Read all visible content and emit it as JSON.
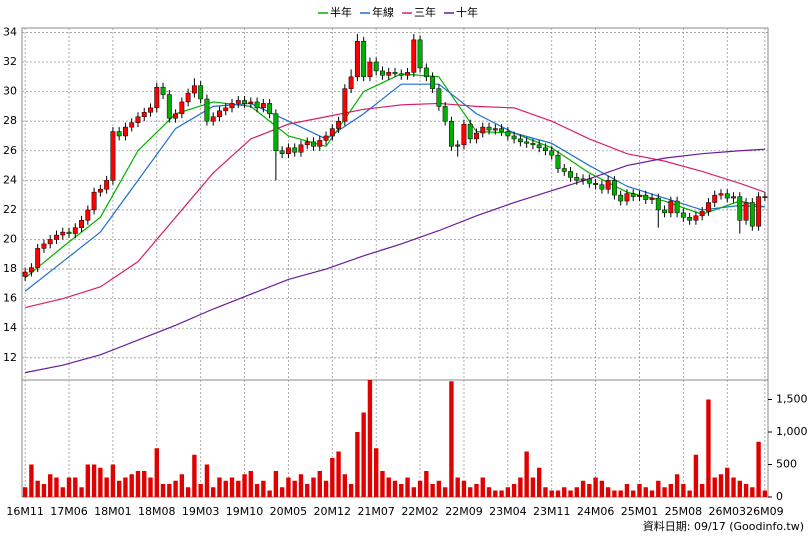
{
  "chart_data": {
    "type": "candlestick",
    "up_color": "#ff0000",
    "down_color": "#00b000",
    "grid": true,
    "categories": [
      "16M11",
      null,
      null,
      null,
      null,
      null,
      null,
      "17M06",
      null,
      null,
      null,
      null,
      null,
      null,
      "18M01",
      null,
      null,
      null,
      null,
      null,
      null,
      "18M08",
      null,
      null,
      null,
      null,
      null,
      null,
      "19M03",
      null,
      null,
      null,
      null,
      null,
      null,
      "19M10",
      null,
      null,
      null,
      null,
      null,
      null,
      "20M05",
      null,
      null,
      null,
      null,
      null,
      null,
      "20M12",
      null,
      null,
      null,
      null,
      null,
      null,
      "21M07",
      null,
      null,
      null,
      null,
      null,
      null,
      "22M02",
      null,
      null,
      null,
      null,
      null,
      null,
      "22M09",
      null,
      null,
      null,
      null,
      null,
      null,
      "23M04",
      null,
      null,
      null,
      null,
      null,
      null,
      "23M11",
      null,
      null,
      null,
      null,
      null,
      null,
      "24M06",
      null,
      null,
      null,
      null,
      null,
      null,
      "25M01",
      null,
      null,
      null,
      null,
      null,
      null,
      "25M08",
      null,
      null,
      null,
      null,
      null,
      null,
      "26M03",
      null,
      null,
      null,
      null,
      null,
      "26M09"
    ],
    "open": [
      17.5,
      17.8,
      18.1,
      19.4,
      19.7,
      20.0,
      20.3,
      20.5,
      20.4,
      20.8,
      21.3,
      22.0,
      23.2,
      23.4,
      24.0,
      27.3,
      27.0,
      27.6,
      27.9,
      28.3,
      28.6,
      28.9,
      30.3,
      29.8,
      28.2,
      28.5,
      29.3,
      29.9,
      30.4,
      29.5,
      28.0,
      28.3,
      28.7,
      28.9,
      29.2,
      29.4,
      29.2,
      29.3,
      28.9,
      29.2,
      28.5,
      26.0,
      25.8,
      26.2,
      25.9,
      26.4,
      26.6,
      26.3,
      26.7,
      27.0,
      27.5,
      28.0,
      30.2,
      31.0,
      33.4,
      31.0,
      32.0,
      31.4,
      31.1,
      31.3,
      31.2,
      31.1,
      31.3,
      33.5,
      31.6,
      31.0,
      30.2,
      29.0,
      28.0,
      26.3,
      26.4,
      27.8,
      26.8,
      27.2,
      27.6,
      27.4,
      27.5,
      27.3,
      27.0,
      26.8,
      26.6,
      26.5,
      26.4,
      26.2,
      26.0,
      25.7,
      24.8,
      24.6,
      24.2,
      24.0,
      24.1,
      23.8,
      23.7,
      23.4,
      24.0,
      23.0,
      22.6,
      23.1,
      22.9,
      23.0,
      22.7,
      22.8,
      22.0,
      21.8,
      22.6,
      21.8,
      21.5,
      21.3,
      21.6,
      21.9,
      22.5,
      23.0,
      23.1,
      22.8,
      22.9,
      21.3,
      22.5,
      20.9,
      22.9
    ],
    "high": [
      18.1,
      18.4,
      19.7,
      20.0,
      20.3,
      20.6,
      20.8,
      20.8,
      21.1,
      21.6,
      22.3,
      23.5,
      23.7,
      24.3,
      27.6,
      27.6,
      27.9,
      28.2,
      28.6,
      28.9,
      29.2,
      30.6,
      30.6,
      30.1,
      28.8,
      29.6,
      30.2,
      30.9,
      30.7,
      29.8,
      28.6,
      29.0,
      29.2,
      29.5,
      29.7,
      29.7,
      29.6,
      29.6,
      29.5,
      29.5,
      28.8,
      26.3,
      26.5,
      26.5,
      26.7,
      26.9,
      26.9,
      27.0,
      27.3,
      27.8,
      28.3,
      30.5,
      31.5,
      33.9,
      33.7,
      32.3,
      32.3,
      31.7,
      31.6,
      31.6,
      31.5,
      31.6,
      33.9,
      33.8,
      31.9,
      31.3,
      30.5,
      29.3,
      28.3,
      26.7,
      28.1,
      28.1,
      27.5,
      27.9,
      27.9,
      27.8,
      27.8,
      27.6,
      27.3,
      27.1,
      26.9,
      26.8,
      26.7,
      26.5,
      26.3,
      26.0,
      25.1,
      24.9,
      24.5,
      24.4,
      24.4,
      24.1,
      24.0,
      24.3,
      24.3,
      23.3,
      23.4,
      23.4,
      23.3,
      23.3,
      23.1,
      23.1,
      22.3,
      22.9,
      22.9,
      22.1,
      21.8,
      21.9,
      22.2,
      22.8,
      23.3,
      23.4,
      23.4,
      23.2,
      23.2,
      22.8,
      22.8,
      23.2,
      23.2
    ],
    "low": [
      17.2,
      17.5,
      17.8,
      19.1,
      19.4,
      19.7,
      20.0,
      20.1,
      20.1,
      20.5,
      21.0,
      21.7,
      22.9,
      23.1,
      23.7,
      26.7,
      26.7,
      27.3,
      27.6,
      28.0,
      28.3,
      28.6,
      29.5,
      27.9,
      27.9,
      28.2,
      29.0,
      29.6,
      29.2,
      27.7,
      27.7,
      28.0,
      28.4,
      28.6,
      28.9,
      28.9,
      28.9,
      28.6,
      28.6,
      28.2,
      24.0,
      25.5,
      25.5,
      25.6,
      25.6,
      26.1,
      26.0,
      26.0,
      26.4,
      26.7,
      27.2,
      27.7,
      29.9,
      30.7,
      30.7,
      30.7,
      31.1,
      30.8,
      30.8,
      31.0,
      30.8,
      30.8,
      31.0,
      31.3,
      30.7,
      29.9,
      28.7,
      27.7,
      26.0,
      25.6,
      26.1,
      26.5,
      26.5,
      26.9,
      27.1,
      27.1,
      27.0,
      26.7,
      26.5,
      26.3,
      26.2,
      26.1,
      25.9,
      25.7,
      25.4,
      24.5,
      24.3,
      23.9,
      23.7,
      23.7,
      23.5,
      23.4,
      23.1,
      23.1,
      22.7,
      22.3,
      22.3,
      22.6,
      22.6,
      22.4,
      22.4,
      20.8,
      21.5,
      21.5,
      21.5,
      21.2,
      21.0,
      21.0,
      21.3,
      21.6,
      22.2,
      22.7,
      22.5,
      22.5,
      20.4,
      21.0,
      20.6,
      20.6,
      22.6
    ],
    "close": [
      17.8,
      18.1,
      19.4,
      19.7,
      20.0,
      20.3,
      20.5,
      20.4,
      20.8,
      21.3,
      22.0,
      23.2,
      23.4,
      24.0,
      27.3,
      27.0,
      27.6,
      27.9,
      28.3,
      28.6,
      28.9,
      30.3,
      29.8,
      28.2,
      28.5,
      29.3,
      29.9,
      30.4,
      29.5,
      28.0,
      28.3,
      28.7,
      28.9,
      29.2,
      29.4,
      29.2,
      29.3,
      28.9,
      29.2,
      28.5,
      26.0,
      25.8,
      26.2,
      25.9,
      26.4,
      26.6,
      26.3,
      26.7,
      27.0,
      27.5,
      28.0,
      30.2,
      31.0,
      33.4,
      31.0,
      32.0,
      31.4,
      31.1,
      31.3,
      31.2,
      31.1,
      31.3,
      33.5,
      31.6,
      31.0,
      30.2,
      29.0,
      28.0,
      26.3,
      26.4,
      27.8,
      26.8,
      27.2,
      27.6,
      27.4,
      27.5,
      27.3,
      27.0,
      26.8,
      26.6,
      26.5,
      26.4,
      26.2,
      26.0,
      25.7,
      24.8,
      24.6,
      24.2,
      24.0,
      24.1,
      23.8,
      23.7,
      23.4,
      24.0,
      23.0,
      22.6,
      23.1,
      22.9,
      23.0,
      22.7,
      22.8,
      22.0,
      21.8,
      22.6,
      21.8,
      21.5,
      21.3,
      21.6,
      21.9,
      22.5,
      23.0,
      23.1,
      22.8,
      22.9,
      21.3,
      22.5,
      20.9,
      22.9,
      22.9
    ],
    "ylim": [
      10.5,
      34.3
    ],
    "yticks": [
      12,
      14,
      16,
      18,
      20,
      22,
      24,
      26,
      28,
      30,
      32,
      34
    ],
    "series": [
      {
        "name": "半年",
        "color": "#00b000",
        "x": [
          0,
          6,
          12,
          18,
          24,
          30,
          36,
          42,
          48,
          54,
          60,
          66,
          72,
          78,
          84,
          90,
          96,
          102,
          108,
          114,
          118
        ],
        "values": [
          17.4,
          19.5,
          21.5,
          26.0,
          28.5,
          29.3,
          29.0,
          27.0,
          26.3,
          30.0,
          31.2,
          31.0,
          27.3,
          27.2,
          26.2,
          24.5,
          23.2,
          22.6,
          21.7,
          22.6,
          22.2
        ]
      },
      {
        "name": "年線",
        "color": "#1f6fd0",
        "x": [
          0,
          6,
          12,
          18,
          24,
          30,
          36,
          42,
          48,
          54,
          60,
          66,
          72,
          78,
          84,
          90,
          96,
          102,
          108,
          114,
          118
        ],
        "values": [
          16.5,
          18.5,
          20.5,
          24.0,
          27.5,
          29.0,
          29.2,
          28.0,
          26.8,
          28.5,
          30.5,
          30.5,
          28.5,
          27.2,
          26.5,
          25.0,
          23.6,
          22.8,
          22.0,
          22.3,
          22.2
        ]
      },
      {
        "name": "三年",
        "color": "#d8206a",
        "x": [
          0,
          6,
          12,
          18,
          24,
          30,
          36,
          42,
          48,
          54,
          60,
          66,
          72,
          78,
          84,
          90,
          96,
          102,
          108,
          114,
          118
        ],
        "values": [
          15.4,
          16.0,
          16.8,
          18.5,
          21.5,
          24.5,
          26.8,
          27.8,
          28.3,
          28.8,
          29.1,
          29.2,
          29.0,
          28.9,
          28.0,
          26.8,
          25.8,
          25.3,
          24.6,
          23.8,
          23.2
        ]
      },
      {
        "name": "十年",
        "color": "#6a1a9a",
        "x": [
          0,
          6,
          12,
          18,
          24,
          30,
          36,
          42,
          48,
          54,
          60,
          66,
          72,
          78,
          84,
          90,
          96,
          102,
          108,
          114,
          118
        ],
        "values": [
          11.0,
          11.5,
          12.2,
          13.2,
          14.2,
          15.3,
          16.3,
          17.3,
          18.0,
          18.9,
          19.7,
          20.6,
          21.6,
          22.5,
          23.3,
          24.1,
          25.0,
          25.5,
          25.8,
          26.0,
          26.1
        ]
      }
    ],
    "volume": {
      "color": "#e00000",
      "values": [
        150,
        500,
        250,
        200,
        350,
        300,
        150,
        300,
        300,
        150,
        500,
        500,
        450,
        300,
        500,
        250,
        300,
        350,
        400,
        400,
        300,
        750,
        200,
        200,
        250,
        350,
        150,
        650,
        200,
        500,
        150,
        300,
        250,
        300,
        250,
        350,
        400,
        200,
        250,
        100,
        400,
        150,
        300,
        250,
        350,
        200,
        300,
        400,
        250,
        600,
        700,
        350,
        200,
        1000,
        1300,
        1800,
        750,
        400,
        300,
        250,
        200,
        300,
        150,
        250,
        400,
        200,
        250,
        150,
        1780,
        300,
        250,
        150,
        200,
        300,
        150,
        100,
        100,
        150,
        200,
        300,
        700,
        300,
        450,
        150,
        100,
        100,
        150,
        100,
        150,
        250,
        200,
        300,
        250,
        150,
        100,
        100,
        200,
        100,
        200,
        150,
        100,
        250,
        150,
        200,
        350,
        200,
        100,
        650,
        200,
        1500,
        300,
        350,
        450,
        300,
        250,
        200,
        150,
        850,
        100
      ],
      "ylim": [
        0,
        1800
      ],
      "yticks": [
        0,
        500,
        {
          "value": 1000,
          "label": "1,000"
        },
        {
          "value": 1500,
          "label": "1,500"
        }
      ]
    },
    "footer": "資料日期: 09/17 (Goodinfo.tw)"
  }
}
